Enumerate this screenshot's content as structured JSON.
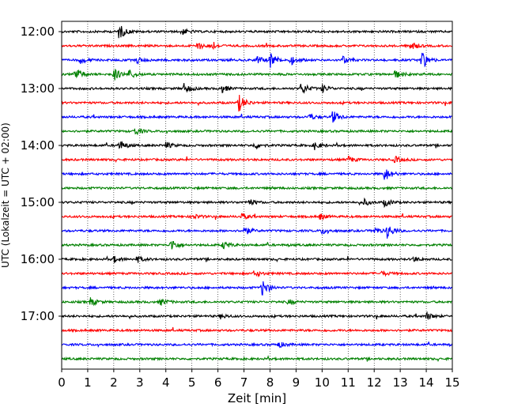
{
  "chart_data": {
    "type": "line",
    "title": "",
    "xlabel": "Zeit  [min]",
    "ylabel": "UTC (Lokalzeit = UTC + 02:00)",
    "xlim": [
      0,
      15
    ],
    "x_ticks": [
      "0",
      "1",
      "2",
      "3",
      "4",
      "5",
      "6",
      "7",
      "8",
      "9",
      "10",
      "11",
      "12",
      "13",
      "14",
      "15"
    ],
    "y_ticks": [
      "12:00",
      "13:00",
      "14:00",
      "15:00",
      "16:00",
      "17:00"
    ],
    "x_grid": "dotted",
    "trace_interval_minutes": 15,
    "trace_colors": [
      "#000000",
      "#ff0000",
      "#0000ff",
      "#008000"
    ],
    "series": [
      {
        "start": "12:00",
        "color": "#000000",
        "events": [
          {
            "t": 2.2,
            "amp": 1.0
          },
          {
            "t": 4.6,
            "amp": 0.4
          }
        ]
      },
      {
        "start": "12:15",
        "color": "#ff0000",
        "events": [
          {
            "t": 5.2,
            "amp": 0.5
          },
          {
            "t": 5.7,
            "amp": 0.5
          },
          {
            "t": 13.4,
            "amp": 0.6
          }
        ]
      },
      {
        "start": "12:30",
        "color": "#0000ff",
        "events": [
          {
            "t": 0.7,
            "amp": 0.4
          },
          {
            "t": 2.9,
            "amp": 0.4
          },
          {
            "t": 7.5,
            "amp": 0.5
          },
          {
            "t": 8.0,
            "amp": 1.0
          },
          {
            "t": 8.8,
            "amp": 0.6
          },
          {
            "t": 10.8,
            "amp": 0.5
          },
          {
            "t": 13.8,
            "amp": 1.3
          }
        ]
      },
      {
        "start": "12:45",
        "color": "#008000",
        "events": [
          {
            "t": 0.5,
            "amp": 1.0
          },
          {
            "t": 2.0,
            "amp": 0.8
          },
          {
            "t": 2.6,
            "amp": 0.6
          },
          {
            "t": 12.8,
            "amp": 0.5
          }
        ]
      },
      {
        "start": "13:00",
        "color": "#000000",
        "events": [
          {
            "t": 4.7,
            "amp": 0.6
          },
          {
            "t": 6.1,
            "amp": 0.6
          },
          {
            "t": 9.2,
            "amp": 0.8
          },
          {
            "t": 10.0,
            "amp": 0.5
          }
        ]
      },
      {
        "start": "13:15",
        "color": "#ff0000",
        "events": [
          {
            "t": 6.8,
            "amp": 1.1
          }
        ]
      },
      {
        "start": "13:30",
        "color": "#0000ff",
        "events": [
          {
            "t": 9.5,
            "amp": 0.4
          },
          {
            "t": 10.4,
            "amp": 0.8
          }
        ]
      },
      {
        "start": "13:45",
        "color": "#008000",
        "events": [
          {
            "t": 2.8,
            "amp": 0.5
          }
        ]
      },
      {
        "start": "14:00",
        "color": "#000000",
        "events": [
          {
            "t": 2.2,
            "amp": 0.6
          },
          {
            "t": 4.0,
            "amp": 0.4
          },
          {
            "t": 7.4,
            "amp": 0.4
          },
          {
            "t": 9.7,
            "amp": 0.5
          }
        ]
      },
      {
        "start": "14:15",
        "color": "#ff0000",
        "events": [
          {
            "t": 11.0,
            "amp": 0.4
          },
          {
            "t": 12.8,
            "amp": 0.4
          }
        ]
      },
      {
        "start": "14:30",
        "color": "#0000ff",
        "events": [
          {
            "t": 12.4,
            "amp": 0.9
          }
        ]
      },
      {
        "start": "14:45",
        "color": "#008000",
        "events": []
      },
      {
        "start": "15:00",
        "color": "#000000",
        "events": [
          {
            "t": 7.2,
            "amp": 0.4
          },
          {
            "t": 11.6,
            "amp": 0.4
          },
          {
            "t": 12.4,
            "amp": 0.5
          }
        ]
      },
      {
        "start": "15:15",
        "color": "#ff0000",
        "events": [
          {
            "t": 5.0,
            "amp": 0.4
          },
          {
            "t": 6.9,
            "amp": 0.4
          },
          {
            "t": 9.9,
            "amp": 0.4
          }
        ]
      },
      {
        "start": "15:30",
        "color": "#0000ff",
        "events": [
          {
            "t": 7.0,
            "amp": 0.6
          },
          {
            "t": 10.0,
            "amp": 0.4
          },
          {
            "t": 12.0,
            "amp": 0.4
          },
          {
            "t": 12.5,
            "amp": 0.9
          }
        ]
      },
      {
        "start": "15:45",
        "color": "#008000",
        "events": [
          {
            "t": 4.2,
            "amp": 0.8
          },
          {
            "t": 6.2,
            "amp": 0.5
          }
        ]
      },
      {
        "start": "16:00",
        "color": "#000000",
        "events": [
          {
            "t": 2.0,
            "amp": 0.4
          },
          {
            "t": 2.9,
            "amp": 0.4
          },
          {
            "t": 13.5,
            "amp": 0.3
          }
        ]
      },
      {
        "start": "16:15",
        "color": "#ff0000",
        "events": [
          {
            "t": 7.4,
            "amp": 0.4
          },
          {
            "t": 12.3,
            "amp": 0.3
          }
        ]
      },
      {
        "start": "16:30",
        "color": "#0000ff",
        "events": [
          {
            "t": 7.7,
            "amp": 1.1
          }
        ]
      },
      {
        "start": "16:45",
        "color": "#008000",
        "events": [
          {
            "t": 1.1,
            "amp": 0.5
          },
          {
            "t": 3.8,
            "amp": 0.4
          },
          {
            "t": 8.7,
            "amp": 0.3
          }
        ]
      },
      {
        "start": "17:00",
        "color": "#000000",
        "events": [
          {
            "t": 14.0,
            "amp": 0.5
          },
          {
            "t": 6.1,
            "amp": 0.3
          }
        ]
      },
      {
        "start": "17:15",
        "color": "#ff0000",
        "events": []
      },
      {
        "start": "17:30",
        "color": "#0000ff",
        "events": [
          {
            "t": 8.3,
            "amp": 0.4
          }
        ]
      },
      {
        "start": "17:45",
        "color": "#008000",
        "events": []
      }
    ]
  }
}
